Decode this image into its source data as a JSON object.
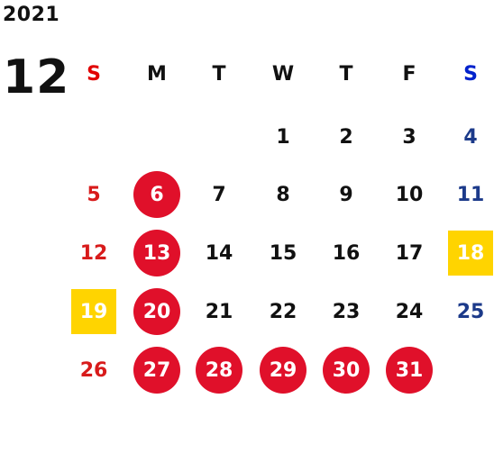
{
  "calendar": {
    "year": "2021",
    "month": "12",
    "weekdays": [
      "S",
      "M",
      "T",
      "W",
      "T",
      "F",
      "S"
    ],
    "weeks": [
      [
        {
          "day": ""
        },
        {
          "day": ""
        },
        {
          "day": ""
        },
        {
          "day": "1"
        },
        {
          "day": "2"
        },
        {
          "day": "3"
        },
        {
          "day": "4"
        }
      ],
      [
        {
          "day": "5"
        },
        {
          "day": "6",
          "mark": "circle"
        },
        {
          "day": "7"
        },
        {
          "day": "8"
        },
        {
          "day": "9"
        },
        {
          "day": "10"
        },
        {
          "day": "11"
        }
      ],
      [
        {
          "day": "12"
        },
        {
          "day": "13",
          "mark": "circle"
        },
        {
          "day": "14"
        },
        {
          "day": "15"
        },
        {
          "day": "16"
        },
        {
          "day": "17"
        },
        {
          "day": "18",
          "mark": "square"
        }
      ],
      [
        {
          "day": "19",
          "mark": "square"
        },
        {
          "day": "20",
          "mark": "circle"
        },
        {
          "day": "21"
        },
        {
          "day": "22"
        },
        {
          "day": "23"
        },
        {
          "day": "24"
        },
        {
          "day": "25"
        }
      ],
      [
        {
          "day": "26"
        },
        {
          "day": "27",
          "mark": "circle"
        },
        {
          "day": "28",
          "mark": "circle"
        },
        {
          "day": "29",
          "mark": "circle"
        },
        {
          "day": "30",
          "mark": "circle"
        },
        {
          "day": "31",
          "mark": "circle"
        }
      ]
    ]
  },
  "colors": {
    "sunday_header": "#e10000",
    "saturday_header": "#0022cc",
    "sunday_day": "#d81b1b",
    "saturday_day": "#1c3a8a",
    "circle_mark": "#e0102a",
    "square_mark": "#ffd400"
  }
}
